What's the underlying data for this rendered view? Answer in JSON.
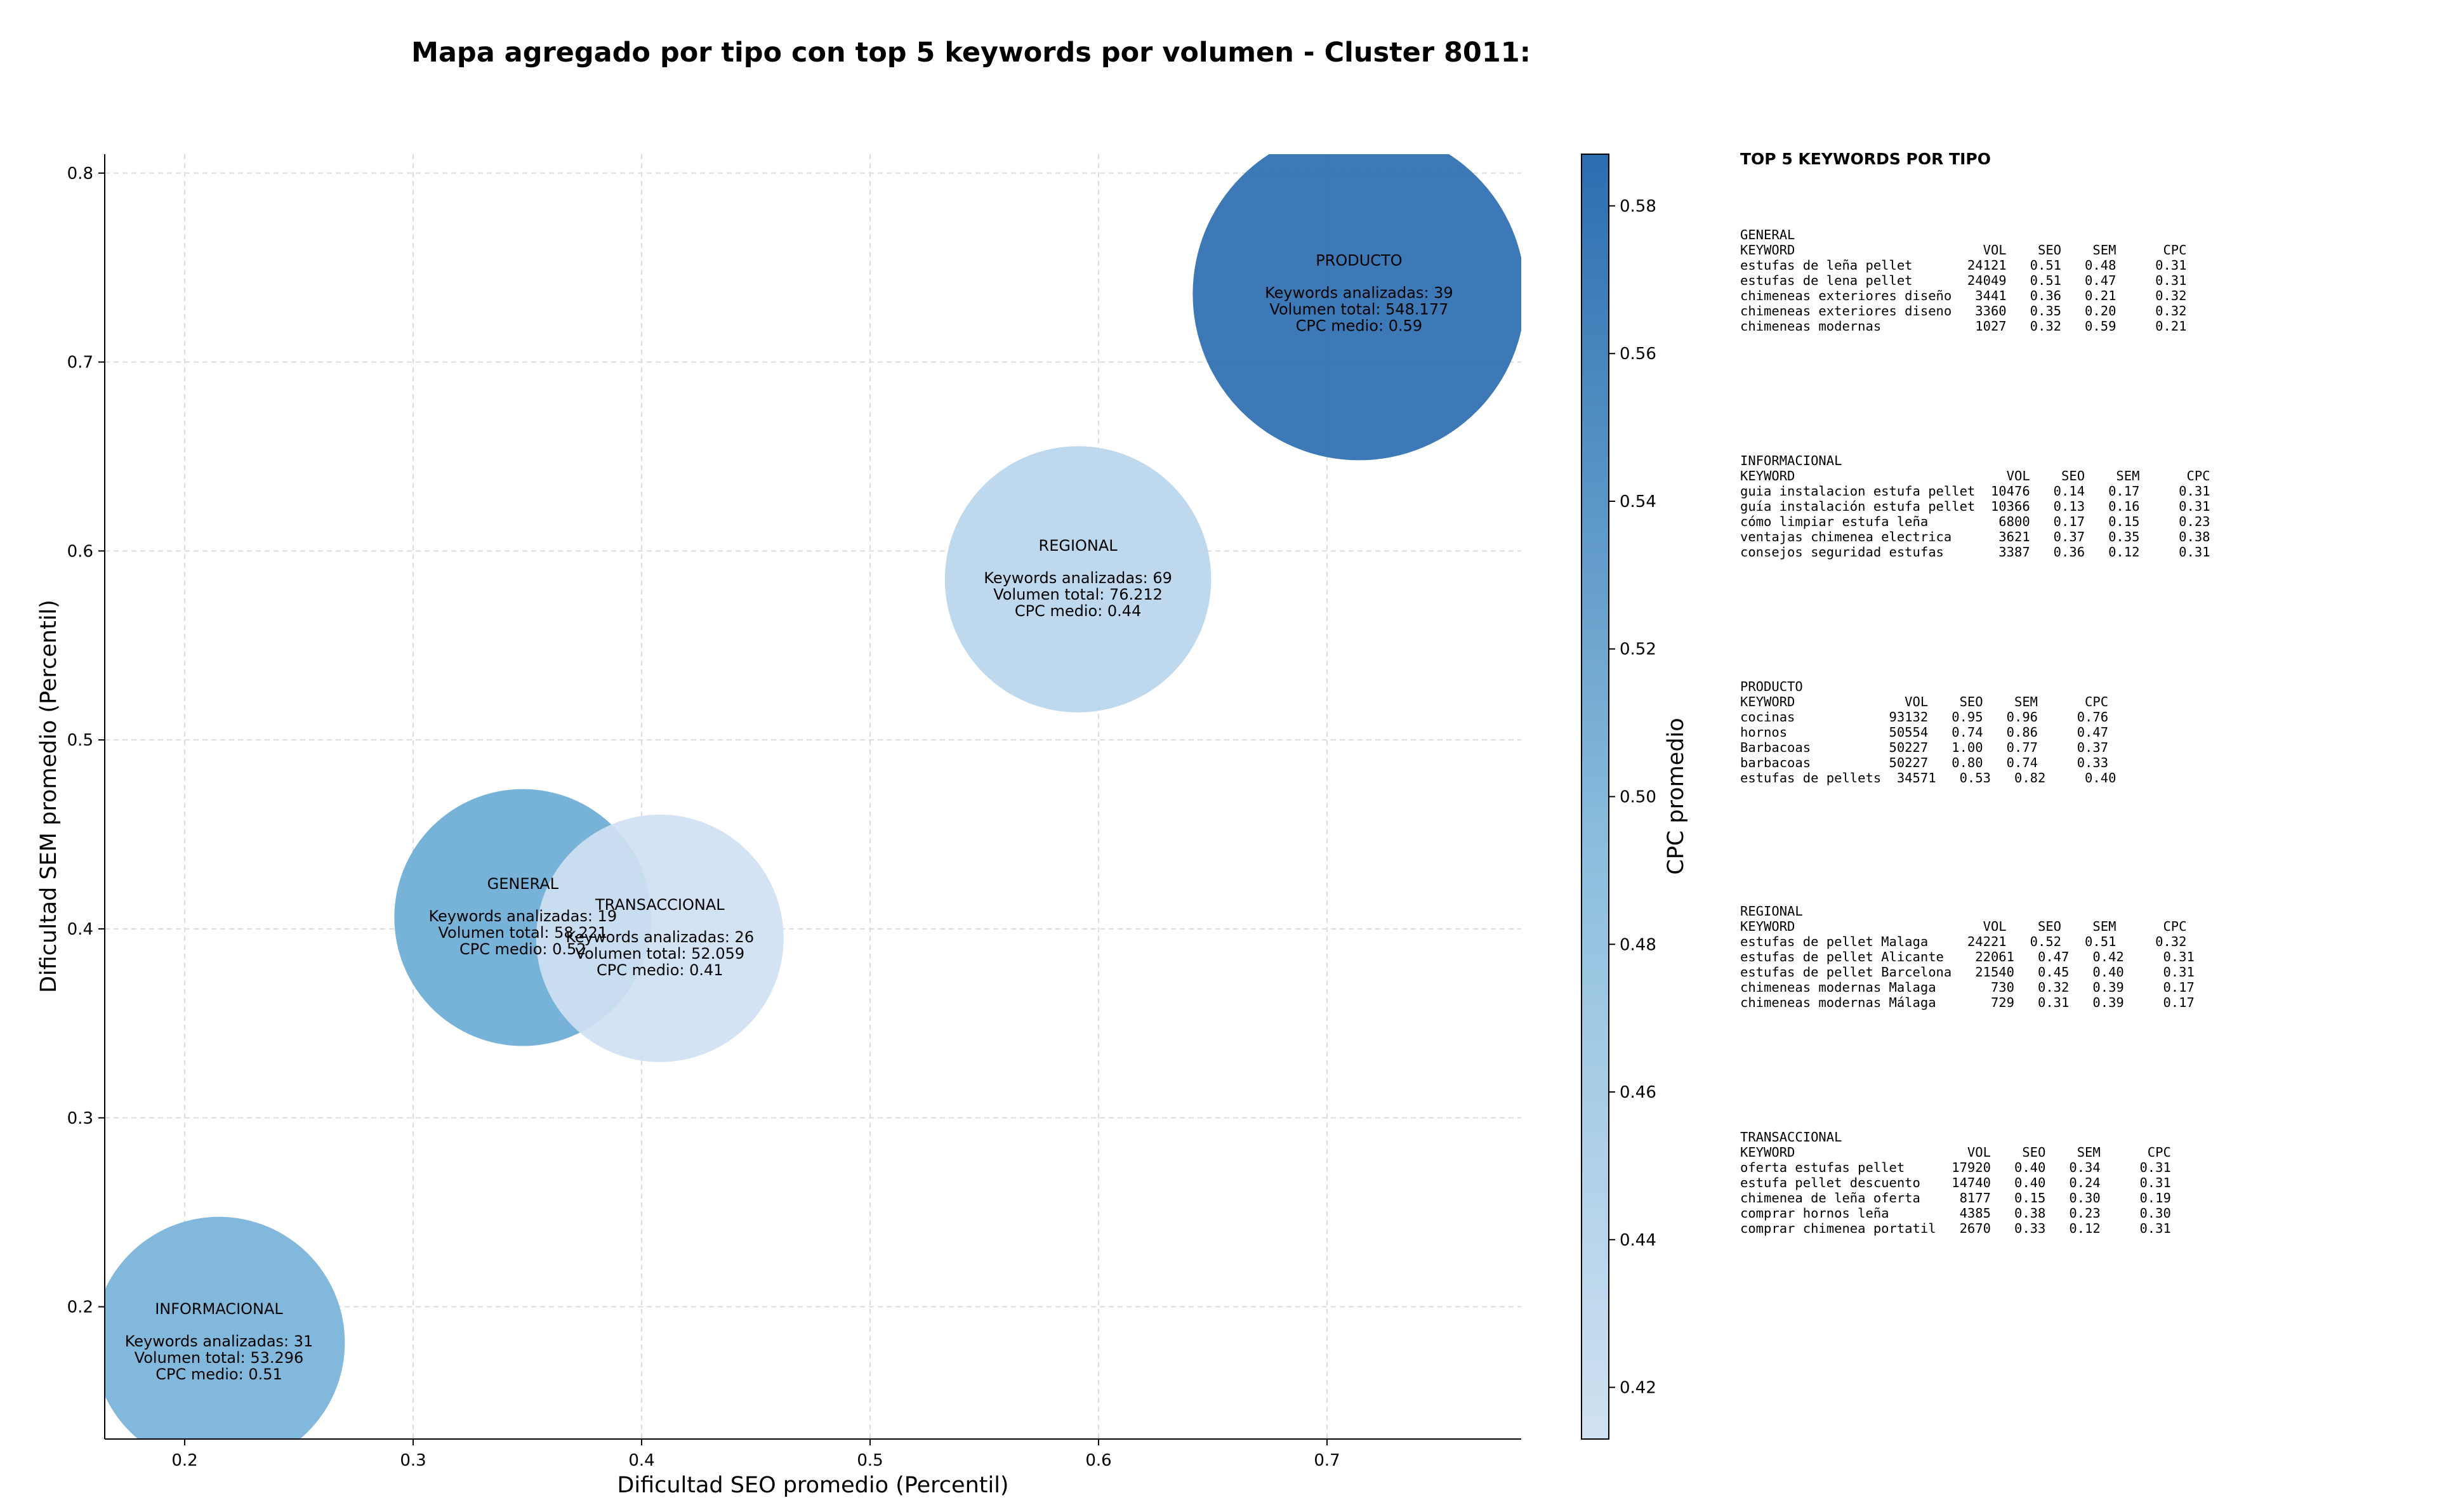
{
  "chart_data": {
    "type": "scatter",
    "title": "Mapa agregado por tipo con top 5 keywords por volumen - Cluster 8011:",
    "xlabel": "Dificultad SEO promedio (Percentil)",
    "ylabel": "Dificultad SEM promedio (Percentil)",
    "xlim": [
      0.165,
      0.785
    ],
    "ylim": [
      0.13,
      0.81
    ],
    "xticks": [
      0.2,
      0.3,
      0.4,
      0.5,
      0.6,
      0.7
    ],
    "yticks": [
      0.2,
      0.3,
      0.4,
      0.5,
      0.6,
      0.7,
      0.8
    ],
    "grid": true,
    "colorbar": {
      "label": "CPC promedio",
      "min": 0.413,
      "max": 0.587,
      "ticks": [
        0.42,
        0.44,
        0.46,
        0.48,
        0.5,
        0.52,
        0.54,
        0.56,
        0.58
      ],
      "color_low": "#d0e1f2",
      "color_high": "#2b6eb0"
    },
    "points": [
      {
        "name": "PRODUCTO",
        "x": 0.714,
        "y": 0.736,
        "volume": 548177,
        "cpc": 0.59,
        "lines": [
          "Keywords analizadas: 39",
          "Volumen total: 548.177",
          "CPC medio: 0.59"
        ]
      },
      {
        "name": "REGIONAL",
        "x": 0.591,
        "y": 0.585,
        "volume": 76212,
        "cpc": 0.44,
        "lines": [
          "Keywords analizadas: 69",
          "Volumen total: 76.212",
          "CPC medio: 0.44"
        ]
      },
      {
        "name": "GENERAL",
        "x": 0.348,
        "y": 0.406,
        "volume": 58221,
        "cpc": 0.52,
        "lines": [
          "Keywords analizadas: 19",
          "Volumen total: 58.221",
          "CPC medio: 0.52"
        ]
      },
      {
        "name": "TRANSACCIONAL",
        "x": 0.408,
        "y": 0.395,
        "volume": 52059,
        "cpc": 0.41,
        "lines": [
          "Keywords analizadas: 26",
          "Volumen total: 52.059",
          "CPC medio: 0.41"
        ]
      },
      {
        "name": "INFORMACIONAL",
        "x": 0.215,
        "y": 0.181,
        "volume": 53296,
        "cpc": 0.51,
        "lines": [
          "Keywords analizadas: 31",
          "Volumen total: 53.296",
          "CPC medio: 0.51"
        ]
      }
    ]
  },
  "panel": {
    "title": "TOP 5 KEYWORDS POR TIPO",
    "blocks": [
      {
        "name": "GENERAL",
        "lines": [
          "GENERAL",
          "KEYWORD                        VOL    SEO    SEM      CPC",
          "estufas de leña pellet       24121   0.51   0.48     0.31",
          "estufas de lena pellet       24049   0.51   0.47     0.31",
          "chimeneas exteriores diseño   3441   0.36   0.21     0.32",
          "chimeneas exteriores diseno   3360   0.35   0.20     0.32",
          "chimeneas modernas            1027   0.32   0.59     0.21"
        ]
      },
      {
        "name": "INFORMACIONAL",
        "lines": [
          "INFORMACIONAL",
          "KEYWORD                           VOL    SEO    SEM      CPC",
          "guia instalacion estufa pellet  10476   0.14   0.17     0.31",
          "guía instalación estufa pellet  10366   0.13   0.16     0.31",
          "cómo limpiar estufa leña         6800   0.17   0.15     0.23",
          "ventajas chimenea electrica      3621   0.37   0.35     0.38",
          "consejos seguridad estufas       3387   0.36   0.12     0.31"
        ]
      },
      {
        "name": "PRODUCTO",
        "lines": [
          "PRODUCTO",
          "KEYWORD              VOL    SEO    SEM      CPC",
          "cocinas            93132   0.95   0.96     0.76",
          "hornos             50554   0.74   0.86     0.47",
          "Barbacoas          50227   1.00   0.77     0.37",
          "barbacoas          50227   0.80   0.74     0.33",
          "estufas de pellets  34571   0.53   0.82     0.40"
        ]
      },
      {
        "name": "REGIONAL",
        "lines": [
          "REGIONAL",
          "KEYWORD                        VOL    SEO    SEM      CPC",
          "estufas de pellet Malaga     24221   0.52   0.51     0.32",
          "estufas de pellet Alicante    22061   0.47   0.42     0.31",
          "estufas de pellet Barcelona   21540   0.45   0.40     0.31",
          "chimeneas modernas Malaga       730   0.32   0.39     0.17",
          "chimeneas modernas Málaga       729   0.31   0.39     0.17"
        ]
      },
      {
        "name": "TRANSACCIONAL",
        "lines": [
          "TRANSACCIONAL",
          "KEYWORD                      VOL    SEO    SEM      CPC",
          "oferta estufas pellet      17920   0.40   0.34     0.31",
          "estufa pellet descuento    14740   0.40   0.24     0.31",
          "chimenea de leña oferta     8177   0.15   0.30     0.19",
          "comprar hornos leña         4385   0.38   0.23     0.30",
          "comprar chimenea portatil   2670   0.33   0.12     0.31"
        ]
      }
    ]
  }
}
